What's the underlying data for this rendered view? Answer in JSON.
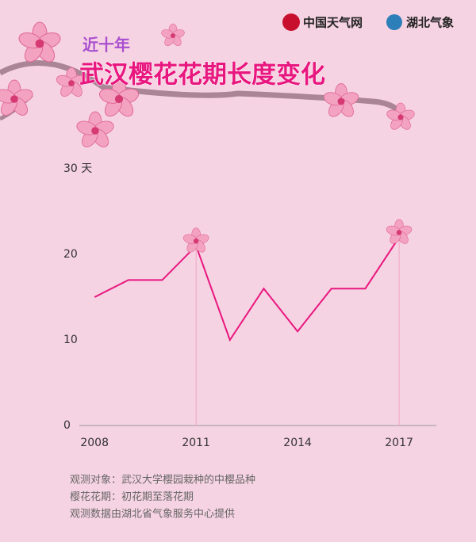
{
  "brand": [
    "中国天气网",
    "湖北气象"
  ],
  "chart_data": {
    "type": "line",
    "subtitle": "近十年",
    "title": "武汉樱花花期长度变化",
    "x": [
      2008,
      2009,
      2010,
      2011,
      2012,
      2013,
      2014,
      2015,
      2016,
      2017
    ],
    "values": [
      15,
      17,
      17,
      21,
      10,
      16,
      11,
      16,
      16,
      22
    ],
    "color": "#e8177f",
    "xlim": [
      2007.55,
      2018.1
    ],
    "xticks": [
      2008,
      2011,
      2014,
      2017
    ],
    "ylim": [
      0,
      30
    ],
    "yticks": [
      0,
      10,
      20,
      {
        "value": 30,
        "label": "30 天"
      }
    ],
    "highlighted_x": [
      2011,
      2017
    ],
    "notes": [
      "观测对象：武汉大学樱园栽种的中樱品种",
      "樱花花期：初花期至落花期",
      "观测数据由湖北省气象服务中心提供"
    ]
  }
}
